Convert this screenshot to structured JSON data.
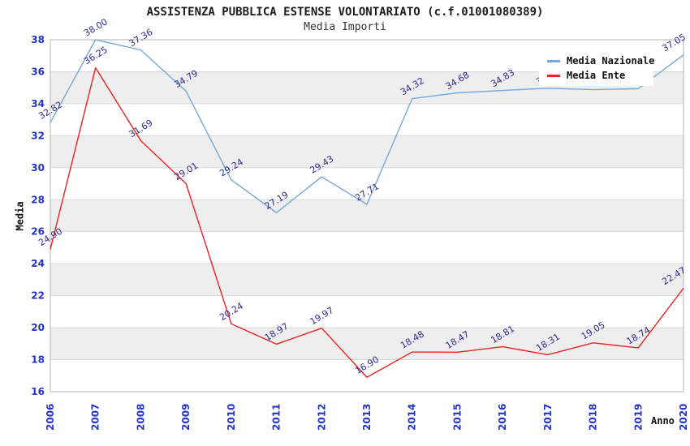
{
  "chart_data": {
    "type": "line",
    "title": "ASSISTENZA PUBBLICA ESTENSE VOLONTARIATO (c.f.01001080389)",
    "subtitle": "Media Importi",
    "xlabel": "Anno",
    "ylabel": "Media",
    "categories": [
      "2006",
      "2007",
      "2008",
      "2009",
      "2010",
      "2011",
      "2012",
      "2013",
      "2014",
      "2015",
      "2016",
      "2017",
      "2018",
      "2019",
      "2020"
    ],
    "series": [
      {
        "name": "Media Nazionale",
        "color": "#74a9dc",
        "values": [
          32.82,
          38.0,
          37.36,
          34.79,
          29.24,
          27.19,
          29.43,
          27.71,
          34.32,
          34.68,
          34.83,
          34.97,
          34.88,
          34.94,
          37.05
        ]
      },
      {
        "name": "Media Ente",
        "color": "#ee2222",
        "values": [
          24.9,
          36.25,
          31.69,
          29.01,
          20.24,
          18.97,
          19.97,
          16.9,
          18.48,
          18.47,
          18.81,
          18.31,
          19.05,
          18.74,
          22.47
        ]
      }
    ],
    "ylim": [
      16,
      38
    ],
    "ytick_step": 2,
    "grid": true,
    "legend_position": "top-right",
    "band_colors": [
      "#ffffff",
      "#eeeeee"
    ],
    "gridline_color": "#d9d9d9",
    "border_color": "#b3b3b3",
    "tick_label_color": "#2233cc",
    "data_label_color": "#2b2b8f"
  }
}
